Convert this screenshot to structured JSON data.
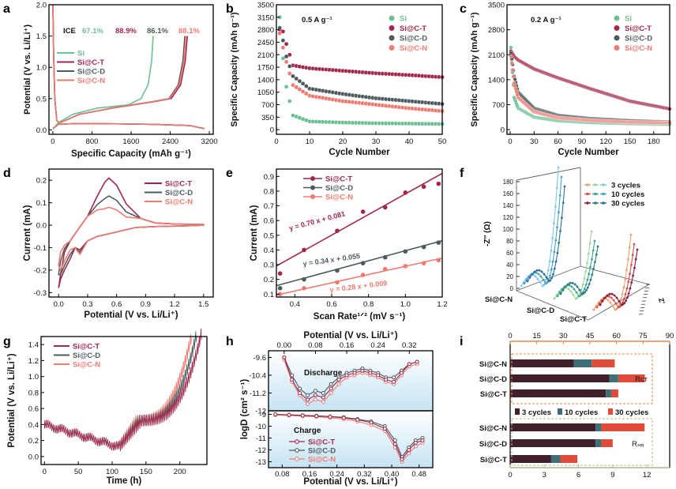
{
  "colors": {
    "Si": "#6dbf95",
    "Si@C-T": "#a1284a",
    "Si@C-D": "#4d5b5f",
    "Si@C-N": "#ee7b72",
    "orange": "#e8874d",
    "dark": "#40202d",
    "teal": "#3d6f76",
    "red": "#e04b3a"
  },
  "panels": {
    "a": {
      "label": "a",
      "xlabel": "Specific Capacity (mAh g⁻¹)",
      "ylabel": "Potential (V vs. Li/Li⁺)",
      "xticks": [
        "0",
        "800",
        "1600",
        "2400",
        "3200"
      ],
      "yticks": [
        "0.0",
        "0.5",
        "1.0",
        "1.5",
        "2.0"
      ],
      "ice_label": "ICE",
      "ice_values": [
        "67.1%",
        "88.9%",
        "86.1%",
        "88.1%"
      ],
      "legend": [
        "Si",
        "Si@C-T",
        "Si@C-D",
        "Si@C-N"
      ]
    },
    "b": {
      "label": "b",
      "annotation": "0.5 A g⁻¹",
      "xlabel": "Cycle Number",
      "ylabel": "Specific Capacity (mAh g⁻¹)",
      "xticks": [
        "0",
        "10",
        "20",
        "30",
        "40",
        "50"
      ],
      "yticks": [
        "0",
        "350",
        "700",
        "1050",
        "1400",
        "1750",
        "2100",
        "2450",
        "2800",
        "3150",
        "3500"
      ],
      "legend": [
        "Si",
        "Si@C-T",
        "Si@C-D",
        "Si@C-N"
      ]
    },
    "c": {
      "label": "c",
      "annotation": "0.2 A g⁻¹",
      "xlabel": "Cycle Number",
      "ylabel": "Specific Capacity (mAh g⁻¹)",
      "xticks": [
        "0",
        "30",
        "60",
        "90",
        "120",
        "150",
        "180"
      ],
      "yticks": [
        "0",
        "700",
        "1400",
        "2100",
        "2800",
        "3500"
      ],
      "legend": [
        "Si",
        "Si@C-T",
        "Si@C-D",
        "Si@C-N"
      ]
    },
    "d": {
      "label": "d",
      "xlabel": "Potential (V vs. Li/Li⁺)",
      "ylabel": "Current (mA)",
      "xticks": [
        "0.0",
        "0.3",
        "0.6",
        "0.9",
        "1.2",
        "1.5"
      ],
      "yticks": [
        "-0.3",
        "-0.2",
        "-0.1",
        "0.0",
        "0.1",
        "0.2"
      ],
      "legend": [
        "Si@C-T",
        "Si@C-D",
        "Si@C-N"
      ]
    },
    "e": {
      "label": "e",
      "xlabel": "Scan Rate¹ᐟ² (mV s⁻¹)",
      "ylabel": "Current (mA)",
      "xticks": [
        "0.4",
        "0.6",
        "0.8",
        "1.0",
        "1.2"
      ],
      "yticks": [
        "0.1",
        "0.2",
        "0.3",
        "0.4",
        "0.5",
        "0.6",
        "0.7",
        "0.8",
        "0.9"
      ],
      "legend": [
        "Si@C-T",
        "Si@C-D",
        "Si@C-N"
      ],
      "equations": [
        "y = 0.70 x + 0.081",
        "y = 0.34 x + 0.055",
        "y = 0.28 x + 0.009"
      ]
    },
    "f": {
      "label": "f",
      "zlabel": "-Z'' (Ω)",
      "zticks": [
        "0",
        "20",
        "40",
        "60",
        "80",
        "100",
        "120",
        "140",
        "160",
        "180"
      ],
      "samples": [
        "Si@C-N",
        "Si@C-D",
        "Si@C-T"
      ],
      "legend": [
        "3 cycles",
        "10 cycles",
        "30 cycles"
      ]
    },
    "g": {
      "label": "g",
      "xlabel": "Time (h)",
      "ylabel": "Potential (V vs. Li/Li⁺)",
      "xticks": [
        "0",
        "50",
        "100",
        "150",
        "200"
      ],
      "yticks": [
        "0.0",
        "0.2",
        "0.4",
        "0.6",
        "0.8",
        "1.0",
        "1.2",
        "1.4"
      ],
      "legend": [
        "Si@C-T",
        "Si@C-D",
        "Si@C-N"
      ]
    },
    "h": {
      "label": "h",
      "top_xlabel": "Potential (V vs. Li/Li⁺)",
      "top_xticks": [
        "0.00",
        "0.08",
        "0.16",
        "0.24",
        "0.32"
      ],
      "bottom_xlabel": "Potential (V vs. Li/Li⁺)",
      "bottom_xticks": [
        "0.08",
        "0.16",
        "0.24",
        "0.32",
        "0.40",
        "0.48"
      ],
      "ylabel": "logD (cm² s⁻¹)",
      "top_yticks": [
        "-9.6",
        "-10.4",
        "-11.2",
        "-12"
      ],
      "bottom_yticks": [
        "-9",
        "-10",
        "-11",
        "-12",
        "-13"
      ],
      "discharge": "Discharge",
      "charge": "Charge",
      "legend": [
        "Si@C-T",
        "Si@C-D",
        "Si@C-N"
      ]
    },
    "i": {
      "label": "i",
      "top_xticks": [
        "0",
        "15",
        "30",
        "45",
        "60",
        "75",
        "90"
      ],
      "bottom_xticks": [
        "0",
        "3",
        "6",
        "9",
        "12"
      ],
      "categories": [
        "Si@C-N",
        "Si@C-D",
        "Si@C-T"
      ],
      "legend": [
        "3 cycles",
        "10 cycles",
        "30 cycles"
      ],
      "rct": "Rст",
      "rsei": "Rₛₑᵢ"
    }
  },
  "chart_data": [
    {
      "panel": "a",
      "type": "line",
      "x_label": "Specific Capacity (mAh g⁻¹)",
      "y_label": "Potential (V vs. Li/Li⁺)",
      "xlim": [
        0,
        3200
      ],
      "ylim": [
        0,
        2.0
      ],
      "series": [
        {
          "name": "Si",
          "lithiation_end_capacity": 3100,
          "delithiation_end_capacity": 2050,
          "plateau_potential": 0.4,
          "ice": "67.1%"
        },
        {
          "name": "Si@C-T",
          "lithiation_end_capacity": 3100,
          "delithiation_end_capacity": 2750,
          "plateau_potential": 0.45,
          "ice": "88.9%"
        },
        {
          "name": "Si@C-D",
          "lithiation_end_capacity": 3100,
          "delithiation_end_capacity": 2700,
          "plateau_potential": 0.45,
          "ice": "86.1%"
        },
        {
          "name": "Si@C-N",
          "lithiation_end_capacity": 3100,
          "delithiation_end_capacity": 2720,
          "plateau_potential": 0.45,
          "ice": "88.1%"
        }
      ]
    },
    {
      "panel": "b",
      "type": "scatter",
      "x_label": "Cycle Number",
      "y_label": "Specific Capacity (mAh g⁻¹)",
      "xlim": [
        0,
        50
      ],
      "ylim": [
        0,
        3500
      ],
      "series": [
        {
          "name": "Si",
          "values_at_cycles": {
            "1": 3150,
            "2": 2000,
            "3": 1200,
            "5": 400,
            "10": 230,
            "20": 200,
            "30": 180,
            "40": 170,
            "50": 160
          }
        },
        {
          "name": "Si@C-T",
          "values_at_cycles": {
            "1": 2800,
            "2": 2750,
            "3": 2400,
            "5": 1800,
            "10": 1720,
            "20": 1650,
            "30": 1580,
            "40": 1530,
            "50": 1470
          }
        },
        {
          "name": "Si@C-D",
          "values_at_cycles": {
            "1": 2850,
            "2": 2500,
            "3": 2050,
            "5": 1500,
            "10": 1150,
            "20": 1000,
            "30": 880,
            "40": 800,
            "50": 720
          }
        },
        {
          "name": "Si@C-N",
          "values_at_cycles": {
            "1": 2700,
            "2": 2300,
            "3": 1900,
            "5": 1250,
            "10": 950,
            "20": 800,
            "30": 700,
            "40": 600,
            "50": 520
          }
        }
      ]
    },
    {
      "panel": "c",
      "type": "scatter",
      "x_label": "Cycle Number",
      "y_label": "Specific Capacity (mAh g⁻¹)",
      "xlim": [
        0,
        200
      ],
      "ylim": [
        0,
        3500
      ],
      "series": [
        {
          "name": "Si",
          "values_at_cycles": {
            "1": 2300,
            "5": 900,
            "10": 600,
            "30": 350,
            "60": 250,
            "100": 200,
            "150": 170,
            "200": 150
          }
        },
        {
          "name": "Si@C-T",
          "values_at_cycles": {
            "1": 2200,
            "5": 2050,
            "10": 1950,
            "30": 1700,
            "60": 1450,
            "100": 1150,
            "150": 800,
            "200": 580
          }
        },
        {
          "name": "Si@C-D",
          "values_at_cycles": {
            "1": 2150,
            "5": 1500,
            "10": 1050,
            "30": 600,
            "60": 400,
            "100": 310,
            "150": 250,
            "200": 210
          }
        },
        {
          "name": "Si@C-N",
          "values_at_cycles": {
            "1": 2050,
            "5": 1300,
            "10": 900,
            "30": 500,
            "60": 330,
            "100": 260,
            "150": 210,
            "200": 190
          }
        }
      ]
    },
    {
      "panel": "d",
      "type": "line",
      "x_label": "Potential (V vs. Li/Li⁺)",
      "y_label": "Current (mA)",
      "xlim": [
        -0.1,
        1.6
      ],
      "ylim": [
        -0.32,
        0.25
      ],
      "series": [
        {
          "name": "Si@C-T",
          "anodic_peak": [
            0.52,
            0.21
          ],
          "cathodic_min": [
            0.0,
            -0.28
          ]
        },
        {
          "name": "Si@C-D",
          "anodic_peak": [
            0.52,
            0.13
          ],
          "cathodic_min": [
            0.0,
            -0.22
          ]
        },
        {
          "name": "Si@C-N",
          "anodic_peak": [
            0.52,
            0.08
          ],
          "cathodic_min": [
            0.0,
            -0.18
          ]
        }
      ]
    },
    {
      "panel": "e",
      "type": "scatter",
      "x_label": "Scan Rate¹ᐟ² (mV s⁻¹)",
      "y_label": "Current (mA)",
      "xlim": [
        0.3,
        1.2
      ],
      "ylim": [
        0.08,
        0.95
      ],
      "x": [
        0.32,
        0.45,
        0.63,
        0.77,
        0.89,
        1.0,
        1.1,
        1.18
      ],
      "series": [
        {
          "name": "Si@C-T",
          "values": [
            0.24,
            0.4,
            0.53,
            0.66,
            0.69,
            0.79,
            0.83,
            0.85
          ],
          "fit": {
            "slope": 0.7,
            "intercept": 0.081
          }
        },
        {
          "name": "Si@C-D",
          "values": [
            0.14,
            0.2,
            0.26,
            0.31,
            0.35,
            0.39,
            0.42,
            0.45
          ],
          "fit": {
            "slope": 0.34,
            "intercept": 0.055
          }
        },
        {
          "name": "Si@C-N",
          "values": [
            0.1,
            0.14,
            0.18,
            0.23,
            0.27,
            0.29,
            0.31,
            0.33
          ],
          "fit": {
            "slope": 0.28,
            "intercept": 0.009
          }
        }
      ]
    },
    {
      "panel": "f",
      "type": "line",
      "z_label": "-Z'' (Ω)",
      "zlim": [
        0,
        180
      ],
      "samples": [
        "Si@C-N",
        "Si@C-D",
        "Si@C-T"
      ],
      "cycles": [
        "3 cycles",
        "10 cycles",
        "30 cycles"
      ]
    },
    {
      "panel": "g",
      "type": "line",
      "x_label": "Time (h)",
      "y_label": "Potential (V vs. Li/Li⁺)",
      "xlim": [
        0,
        240
      ],
      "ylim": [
        -0.1,
        1.5
      ],
      "series": [
        {
          "name": "Si@C-T",
          "end_time": 232
        },
        {
          "name": "Si@C-D",
          "end_time": 225
        },
        {
          "name": "Si@C-N",
          "end_time": 218
        }
      ]
    },
    {
      "panel": "h",
      "type": "scatter",
      "top_x_label": "Potential (V vs. Li/Li⁺)",
      "top_xlim": [
        -0.04,
        0.38
      ],
      "top_ylim": [
        -12.0,
        -9.3
      ],
      "bottom_x_label": "Potential (V vs. Li/Li⁺)",
      "bottom_xlim": [
        0.04,
        0.52
      ],
      "bottom_ylim": [
        -13.5,
        -8.7
      ],
      "discharge_points": {
        "x": [
          0.0,
          0.02,
          0.04,
          0.06,
          0.08,
          0.1,
          0.12,
          0.14,
          0.16,
          0.18,
          0.2,
          0.22,
          0.24,
          0.26,
          0.28,
          0.3,
          0.32,
          0.34
        ],
        "Si@C-T": [
          -9.6,
          -10.6,
          -11.2,
          -11.5,
          -11.3,
          -11.4,
          -11.0,
          -10.6,
          -10.4,
          -10.3,
          -10.2,
          -10.3,
          -10.4,
          -10.6,
          -10.7,
          -10.3,
          -9.9,
          -9.8
        ],
        "Si@C-D": [
          -9.6,
          -10.4,
          -11.0,
          -11.3,
          -11.1,
          -11.2,
          -10.8,
          -10.5,
          -10.3,
          -10.2,
          -10.1,
          -10.2,
          -10.3,
          -10.5,
          -10.5,
          -10.2,
          -9.9,
          -9.8
        ],
        "Si@C-N": [
          -9.7,
          -10.7,
          -11.3,
          -11.7,
          -11.5,
          -11.6,
          -11.2,
          -10.8,
          -10.5,
          -10.4,
          -10.3,
          -10.4,
          -10.5,
          -10.7,
          -10.8,
          -10.4,
          -10.0,
          -9.9
        ]
      },
      "charge_points": {
        "x": [
          0.06,
          0.1,
          0.14,
          0.18,
          0.22,
          0.26,
          0.3,
          0.34,
          0.38,
          0.41,
          0.43,
          0.45,
          0.47,
          0.49
        ],
        "Si@C-T": [
          -9.0,
          -9.05,
          -9.1,
          -9.15,
          -9.2,
          -9.3,
          -9.45,
          -9.7,
          -10.2,
          -11.5,
          -12.8,
          -12.0,
          -11.4,
          -11.2
        ],
        "Si@C-D": [
          -9.0,
          -9.03,
          -9.08,
          -9.12,
          -9.18,
          -9.25,
          -9.4,
          -9.6,
          -10.0,
          -11.2,
          -12.6,
          -11.8,
          -11.2,
          -11.0
        ],
        "Si@C-N": [
          -9.05,
          -9.1,
          -9.15,
          -9.2,
          -9.3,
          -9.4,
          -9.6,
          -9.9,
          -10.4,
          -11.8,
          -13.0,
          -12.3,
          -11.7,
          -11.4
        ]
      }
    },
    {
      "panel": "i",
      "type": "bar",
      "orientation": "horizontal",
      "stacked": true,
      "categories": [
        "Si@C-N",
        "Si@C-D",
        "Si@C-T"
      ],
      "groups": [
        {
          "name": "Rст",
          "axis": "top",
          "xlim": [
            0,
            90
          ],
          "series": [
            {
              "name": "3 cycles",
              "values": [
                36,
                56,
                54
              ]
            },
            {
              "name": "10 cycles",
              "values": [
                10,
                5,
                3
              ]
            },
            {
              "name": "30 cycles",
              "values": [
                13,
                15,
                4
              ]
            }
          ]
        },
        {
          "name": "Rₛₑᵢ",
          "axis": "bottom",
          "xlim": [
            0,
            14
          ],
          "series": [
            {
              "name": "3 cycles",
              "values": [
                7.5,
                7.5,
                3.6
              ]
            },
            {
              "name": "10 cycles",
              "values": [
                0.5,
                0.5,
                0.8
              ]
            },
            {
              "name": "30 cycles",
              "values": [
                3.8,
                1.0,
                1.5
              ]
            }
          ]
        }
      ]
    }
  ]
}
